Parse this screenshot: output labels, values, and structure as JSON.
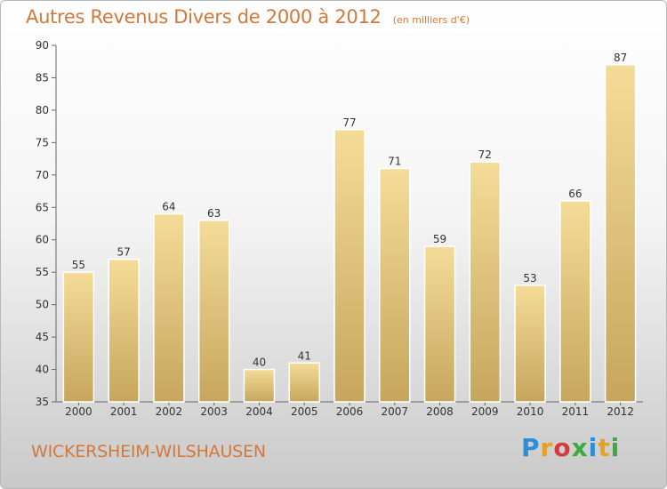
{
  "header": {
    "title": "Autres Revenus Divers de 2000 à 2012",
    "unit": "(en milliers d'€)"
  },
  "footer": {
    "place": "WICKERSHEIM-WILSHAUSEN",
    "logo": [
      "P",
      "r",
      "o",
      "x",
      "i",
      "t",
      "i"
    ],
    "logo_colors": [
      "#2a8fd8",
      "#e8a020",
      "#d23c3c",
      "#3caa3c",
      "#2a8fd8",
      "#e8a020",
      "#3caa3c"
    ]
  },
  "colors": {
    "accent": "#d2783a",
    "bar_light": "#f4dc98",
    "bar_dark": "#c6a65c"
  },
  "chart_data": {
    "type": "bar",
    "title": "Autres Revenus Divers de 2000 à 2012",
    "subtitle": "(en milliers d'€)",
    "categories": [
      "2000",
      "2001",
      "2002",
      "2003",
      "2004",
      "2005",
      "2006",
      "2007",
      "2008",
      "2009",
      "2010",
      "2011",
      "2012"
    ],
    "values": [
      55,
      57,
      64,
      63,
      40,
      41,
      77,
      71,
      59,
      72,
      53,
      66,
      87
    ],
    "ylim": [
      35,
      90
    ],
    "yticks": [
      35,
      40,
      45,
      50,
      55,
      60,
      65,
      70,
      75,
      80,
      85,
      90
    ],
    "grid": false,
    "data_labels": true
  }
}
